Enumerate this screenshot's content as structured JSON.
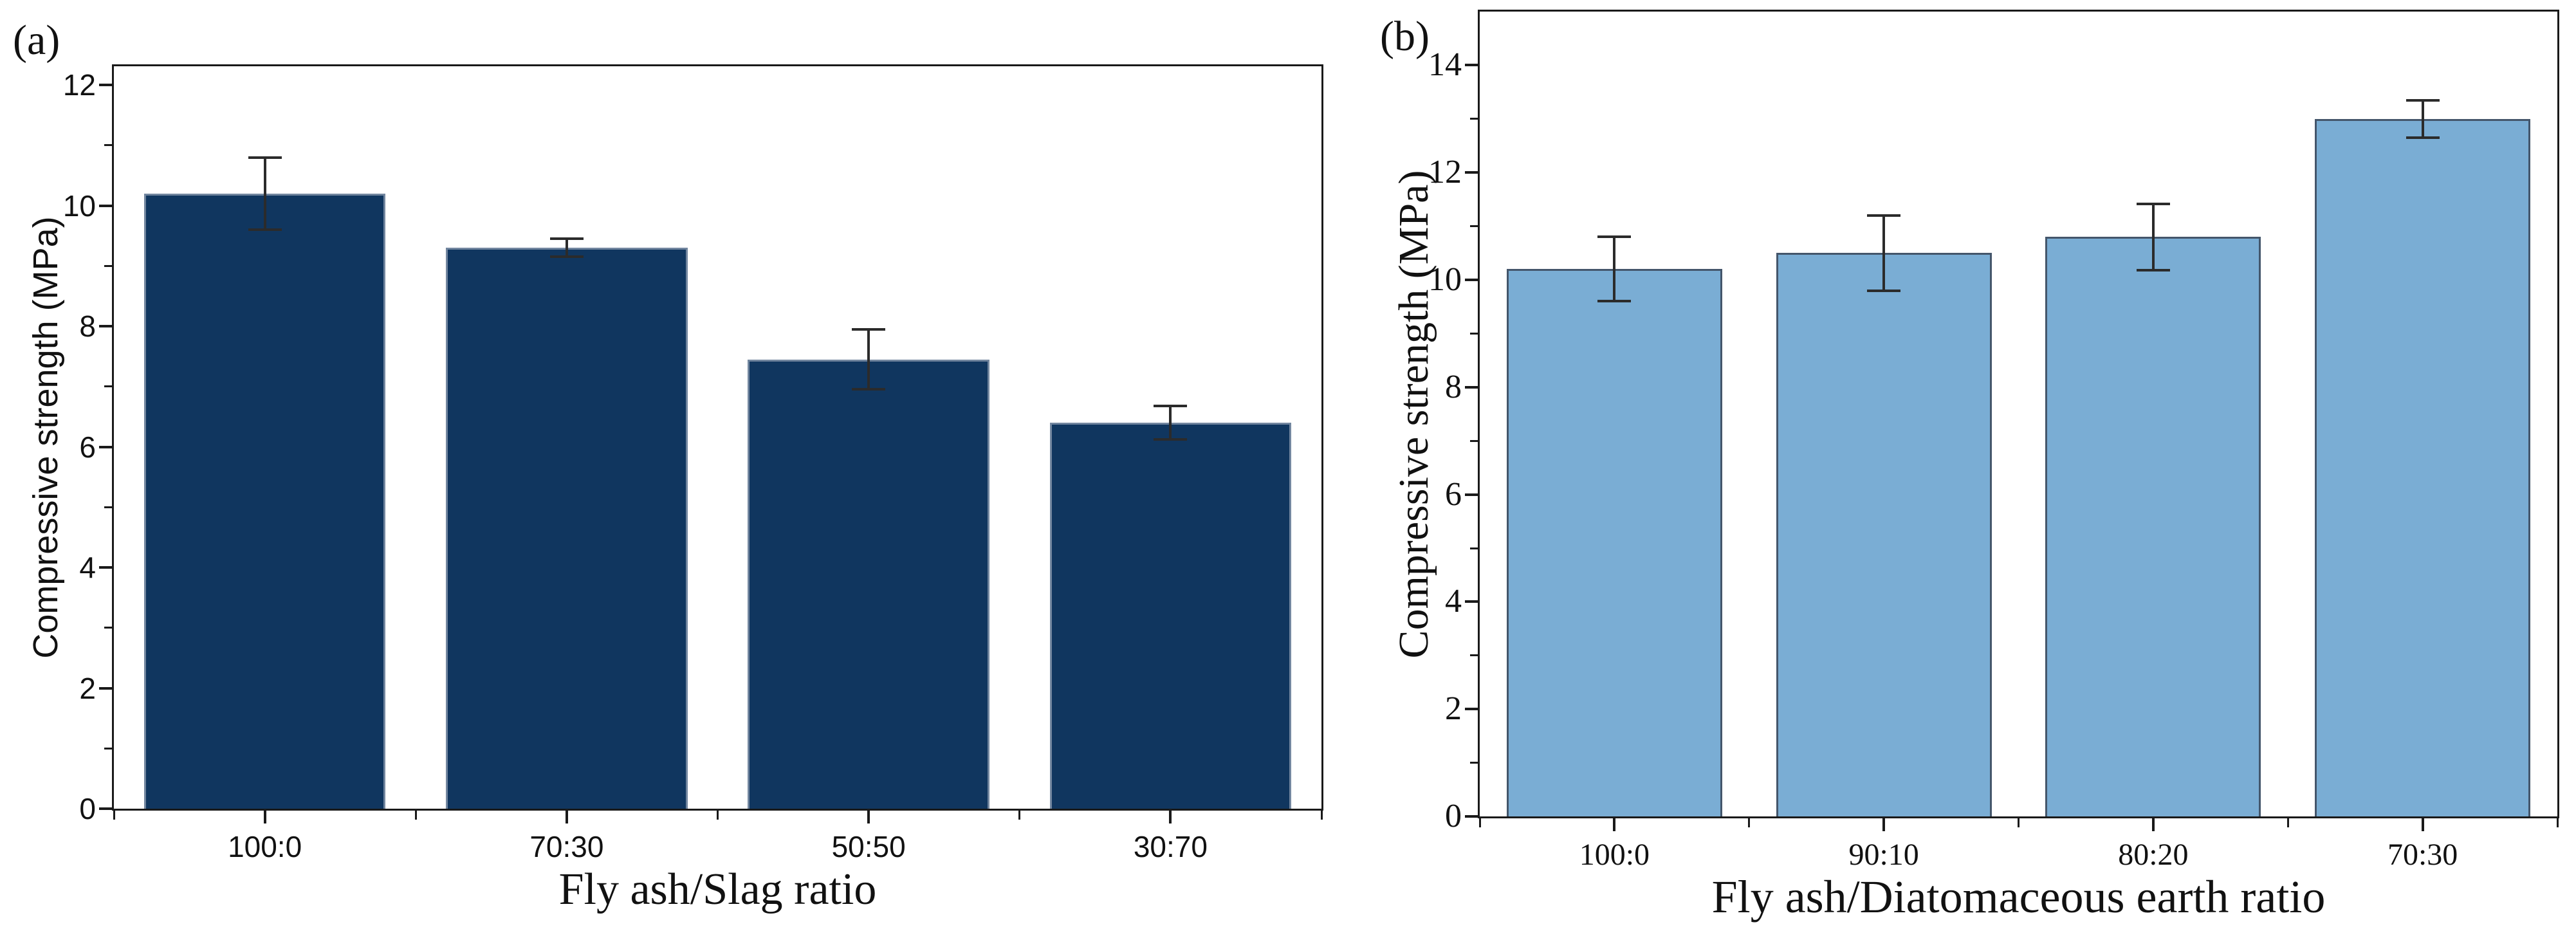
{
  "figure": {
    "background": "#ffffff",
    "axis_color": "#1a1a1a",
    "error_bar_color": "#2b2b2b",
    "text_color": "#111111"
  },
  "chart_data": [
    {
      "type": "bar",
      "panel_label": "(a)",
      "title": "",
      "xlabel": "Fly ash/Slag ratio",
      "ylabel": "Compressive strength (MPa)",
      "categories": [
        "100:0",
        "70:30",
        "50:50",
        "30:70"
      ],
      "values": [
        10.2,
        9.3,
        7.45,
        6.4
      ],
      "errors": [
        0.6,
        0.15,
        0.5,
        0.28
      ],
      "ylim": [
        0,
        12.31
      ],
      "yticks": [
        0,
        2,
        4,
        6,
        8,
        10,
        12
      ],
      "minor_yticks": [
        1,
        3,
        5,
        7,
        9,
        11
      ],
      "bar_fill": "#10365f",
      "bar_edge": "#72869f",
      "bar_width_fraction": 0.8,
      "grid": false,
      "legend": null,
      "frame": true,
      "tick_direction": "out"
    },
    {
      "type": "bar",
      "panel_label": "(b)",
      "title": "",
      "xlabel": "Fly ash/Diatomaceous earth ratio",
      "ylabel": "Compressive strength (MPa)",
      "categories": [
        "100:0",
        "90:10",
        "80:20",
        "70:30"
      ],
      "values": [
        10.2,
        10.5,
        10.8,
        13.0
      ],
      "errors": [
        0.6,
        0.7,
        0.62,
        0.35
      ],
      "ylim": [
        0,
        15
      ],
      "yticks": [
        0,
        2,
        4,
        6,
        8,
        10,
        12,
        14
      ],
      "minor_yticks": [
        1,
        3,
        5,
        7,
        9,
        11,
        13
      ],
      "bar_fill": "#7aadd4",
      "bar_edge": "#44566b",
      "bar_width_fraction": 0.8,
      "grid": false,
      "legend": null,
      "frame": true,
      "tick_direction": "out"
    }
  ]
}
